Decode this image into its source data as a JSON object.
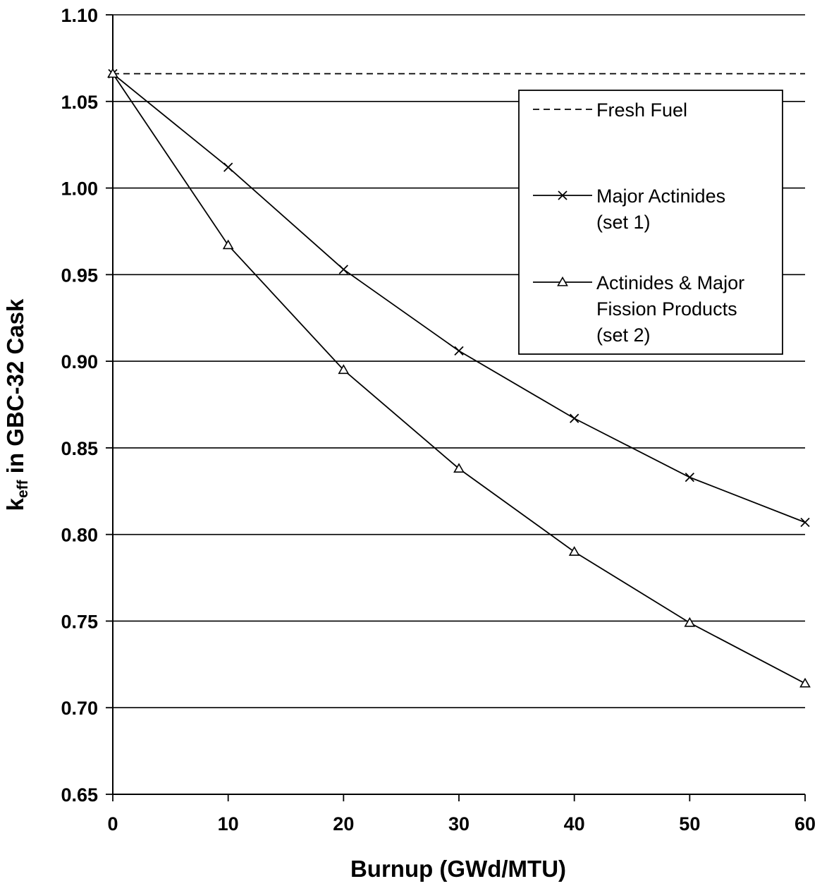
{
  "chart_data": {
    "type": "line",
    "title": "",
    "xlabel": "Burnup (GWd/MTU)",
    "ylabel_main": "k",
    "ylabel_sub": "eff",
    "ylabel_rest": " in GBC-32 Cask",
    "xlim": [
      0,
      60
    ],
    "ylim": [
      0.65,
      1.1
    ],
    "x_ticks": [
      "0",
      "10",
      "20",
      "30",
      "40",
      "50",
      "60"
    ],
    "y_ticks": [
      "0.65",
      "0.70",
      "0.75",
      "0.80",
      "0.85",
      "0.90",
      "0.95",
      "1.00",
      "1.05",
      "1.10"
    ],
    "grid": "horizontal",
    "legend_position": "top-right",
    "series": [
      {
        "name": "Fresh Fuel",
        "style": "dashed",
        "marker": "none",
        "x": [
          0,
          60
        ],
        "values": [
          1.066,
          1.066
        ]
      },
      {
        "name": "Major Actinides (set 1)",
        "legend_lines": [
          "Major Actinides",
          "(set 1)"
        ],
        "style": "solid",
        "marker": "x",
        "x": [
          0,
          10,
          20,
          30,
          40,
          50,
          60
        ],
        "values": [
          1.066,
          1.012,
          0.953,
          0.906,
          0.867,
          0.833,
          0.807
        ]
      },
      {
        "name": "Actinides & Major Fission Products (set 2)",
        "legend_lines": [
          "Actinides & Major",
          "Fission Products",
          "(set 2)"
        ],
        "style": "solid",
        "marker": "triangle",
        "x": [
          0,
          10,
          20,
          30,
          40,
          50,
          60
        ],
        "values": [
          1.066,
          0.967,
          0.895,
          0.838,
          0.79,
          0.749,
          0.714
        ]
      }
    ],
    "colors": {
      "line": "#000000",
      "grid": "#000000",
      "background": "#ffffff"
    }
  }
}
